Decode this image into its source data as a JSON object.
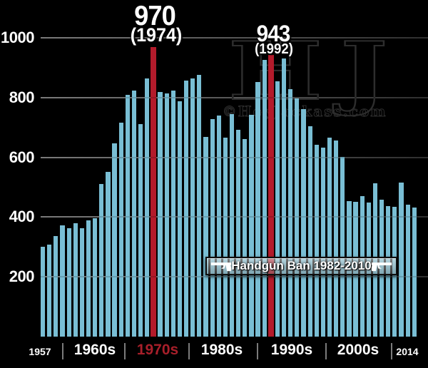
{
  "chart_data": {
    "type": "bar",
    "title": "",
    "x": [
      1957,
      1958,
      1959,
      1960,
      1961,
      1962,
      1963,
      1964,
      1965,
      1966,
      1967,
      1968,
      1969,
      1970,
      1971,
      1972,
      1973,
      1974,
      1975,
      1976,
      1977,
      1978,
      1979,
      1980,
      1981,
      1982,
      1983,
      1984,
      1985,
      1986,
      1987,
      1988,
      1989,
      1990,
      1991,
      1992,
      1993,
      1994,
      1995,
      1996,
      1997,
      1998,
      1999,
      2000,
      2001,
      2002,
      2003,
      2004,
      2005,
      2006,
      2007,
      2008,
      2009,
      2010,
      2011,
      2012,
      2013,
      2014
    ],
    "values": [
      300,
      308,
      336,
      372,
      362,
      380,
      363,
      390,
      395,
      510,
      552,
      647,
      715,
      810,
      824,
      711,
      864,
      970,
      818,
      814,
      823,
      787,
      856,
      863,
      877,
      668,
      729,
      741,
      666,
      744,
      691,
      660,
      742,
      851,
      927,
      943,
      855,
      931,
      828,
      796,
      761,
      704,
      643,
      633,
      667,
      656,
      601,
      453,
      451,
      471,
      448,
      513,
      459,
      436,
      435,
      516,
      441,
      432
    ],
    "highlight_years": [
      1974,
      1992
    ],
    "yticks": [
      200,
      400,
      600,
      800,
      1000
    ],
    "ylim": [
      0,
      1050
    ],
    "grid": true,
    "legend": "none",
    "xticks": [
      {
        "label": "1957",
        "size": "small",
        "color": "white"
      },
      {
        "label": "1960s",
        "size": "large",
        "color": "white"
      },
      {
        "label": "1970s",
        "size": "large",
        "color": "red"
      },
      {
        "label": "1980s",
        "size": "large",
        "color": "white"
      },
      {
        "label": "1990s",
        "size": "large",
        "color": "white"
      },
      {
        "label": "2000s",
        "size": "large",
        "color": "white"
      },
      {
        "label": "2014",
        "size": "small",
        "color": "white"
      }
    ],
    "bar_color": "#79bed4",
    "highlight_color": "#b31b2b",
    "accent_text_color": "#a81f2a",
    "grid_color": "#6c6c6c",
    "background_color": "#000000"
  },
  "annotations": {
    "peak_1974": {
      "value": "970",
      "year": "(1974)"
    },
    "peak_1992": {
      "value": "943",
      "year": "(1992)"
    }
  },
  "banner": {
    "label": "Handgun Ban 1982-2010"
  },
  "watermark": {
    "initials": "HJ",
    "site": "©HeyJackass.com"
  }
}
